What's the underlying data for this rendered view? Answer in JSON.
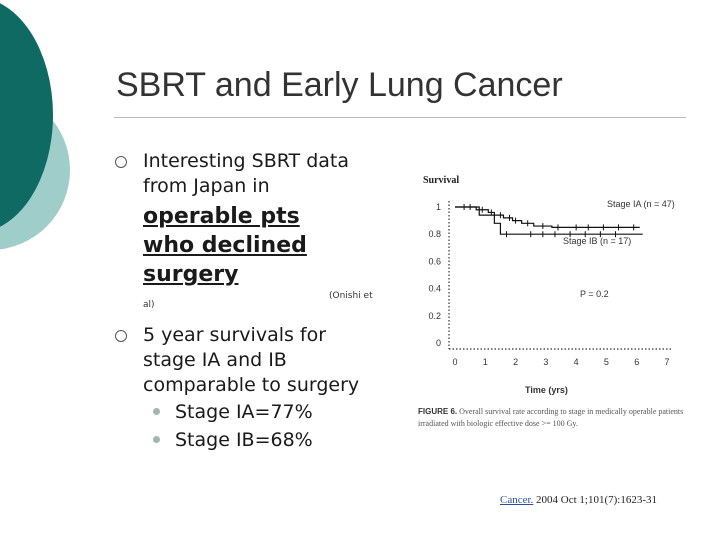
{
  "slide": {
    "title": "SBRT and Early Lung Cancer",
    "colors": {
      "teal_dark": "#0f6a64",
      "teal_light": "#9fcdc9",
      "title": "#333333"
    }
  },
  "bullets": {
    "item1_line1": "Interesting SBRT data",
    "item1_line2": "from Japan in",
    "item1_em_line1": "operable pts",
    "item1_em_line2": "who declined",
    "item1_em_line3": "surgery",
    "item1_ref_a": "(Onishi et",
    "item1_ref_b": "al)",
    "item2_line1": "5 year survivals for",
    "item2_line2": "stage IA and IB",
    "item2_line3": "comparable to surgery",
    "sub1": "Stage IA=77%",
    "sub2": "Stage IB=68%"
  },
  "figure": {
    "caption_label": "FIGURE 6.",
    "caption_text": "Overall survival rate according to stage in medically operable patients irradiated with biologic effective dose >= 100 Gy.",
    "citation_link": "Cancer.",
    "citation_rest": "2004 Oct 1;101(7):1623-31"
  },
  "chart_data": {
    "type": "line",
    "title": "Survival",
    "xlabel": "Time (yrs)",
    "ylabel": "Survival",
    "xlim": [
      0,
      7
    ],
    "ylim": [
      0,
      1
    ],
    "x_ticks": [
      "0",
      "1",
      "2",
      "3",
      "4",
      "5",
      "6",
      "7"
    ],
    "y_ticks": [
      "0",
      "0.2",
      "0.4",
      "0.6",
      "0.8",
      "1"
    ],
    "annotations": {
      "p_value": "P = 0.2"
    },
    "series": [
      {
        "name": "Stage IA (n = 47)",
        "steps": [
          [
            0,
            1.0
          ],
          [
            0.7,
            0.98
          ],
          [
            1.1,
            0.96
          ],
          [
            1.3,
            0.94
          ],
          [
            1.6,
            0.92
          ],
          [
            1.9,
            0.9
          ],
          [
            2.2,
            0.88
          ],
          [
            2.6,
            0.86
          ],
          [
            3.2,
            0.85
          ],
          [
            3.8,
            0.85
          ],
          [
            6.1,
            0.85
          ]
        ],
        "censor": [
          0.3,
          0.5,
          0.9,
          1.2,
          1.5,
          1.8,
          2.0,
          2.4,
          2.9,
          3.4,
          4.0,
          4.4,
          4.9,
          5.4,
          5.9
        ]
      },
      {
        "name": "Stage IB (n = 17)",
        "steps": [
          [
            0,
            1.0
          ],
          [
            0.8,
            0.94
          ],
          [
            1.3,
            0.88
          ],
          [
            1.5,
            0.8
          ],
          [
            2.3,
            0.8
          ],
          [
            6.2,
            0.8
          ]
        ],
        "censor": [
          1.7,
          2.5,
          2.9,
          3.3,
          3.8,
          4.3,
          4.8,
          5.3
        ]
      }
    ]
  }
}
